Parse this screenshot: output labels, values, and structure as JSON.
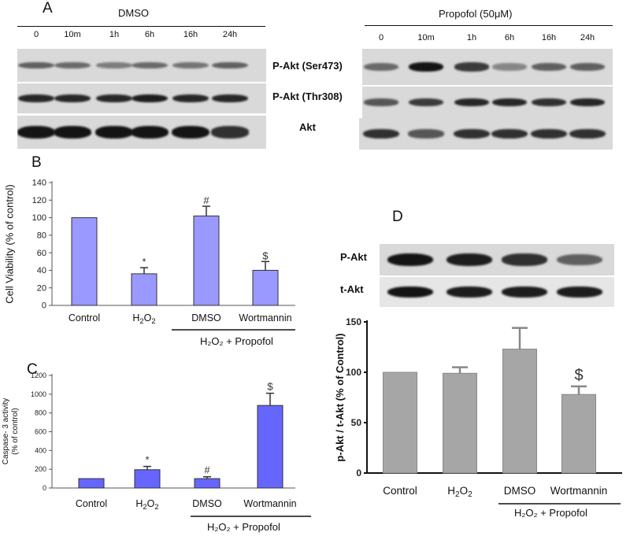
{
  "panelA": {
    "letter": "A",
    "left_group": "DMSO",
    "right_group": "Propofol (50μM)",
    "timepoints": [
      "0",
      "10m",
      "1h",
      "6h",
      "16h",
      "24h"
    ],
    "row_labels": [
      "P-Akt (Ser473)",
      "P-Akt (Thr308)",
      "Akt"
    ],
    "left_intensity": [
      [
        0.55,
        0.5,
        0.4,
        0.5,
        0.45,
        0.55
      ],
      [
        0.85,
        0.85,
        0.85,
        0.9,
        0.85,
        0.85
      ],
      [
        0.95,
        0.95,
        0.95,
        0.95,
        0.95,
        0.8
      ]
    ],
    "right_intensity": [
      [
        0.5,
        0.95,
        0.75,
        0.35,
        0.55,
        0.55
      ],
      [
        0.6,
        0.75,
        0.85,
        0.85,
        0.8,
        0.85
      ],
      [
        0.8,
        0.6,
        0.8,
        0.8,
        0.8,
        0.8
      ]
    ]
  },
  "panelB": {
    "letter": "B",
    "group_label": "H₂O₂ + Propofol",
    "bar_color": "#9999ff",
    "chart_data": {
      "type": "bar",
      "categories": [
        "Control",
        "H₂O₂",
        "DMSO",
        "Wortmannin"
      ],
      "values": [
        100,
        36,
        102,
        40
      ],
      "errors": [
        0,
        7,
        11,
        10
      ],
      "annotations": [
        "",
        "*",
        "#",
        "$"
      ],
      "ylabel": "Cell Viability (% of control)",
      "yticks": [
        0,
        20,
        40,
        60,
        80,
        100,
        120,
        140
      ],
      "ylim": [
        0,
        140
      ]
    }
  },
  "panelC": {
    "letter": "C",
    "group_label": "H₂O₂ + Propofol",
    "bar_color": "#6666ff",
    "chart_data": {
      "type": "bar",
      "categories": [
        "Control",
        "H₂O₂",
        "DMSO",
        "Wortmannin"
      ],
      "values": [
        100,
        195,
        100,
        880
      ],
      "errors": [
        0,
        35,
        20,
        130
      ],
      "annotations": [
        "",
        "*",
        "#",
        "$"
      ],
      "ylabel": "Caspase- 3 activity (% of control)",
      "ylabel_lines": [
        "Caspase- 3 activity",
        "(% of control)"
      ],
      "yticks": [
        0,
        200,
        400,
        600,
        800,
        1000,
        1200
      ],
      "ylim": [
        0,
        1200
      ]
    }
  },
  "panelD": {
    "letter": "D",
    "blot_labels": [
      "P-Akt",
      "t-Akt"
    ],
    "blot_intensity": [
      [
        0.95,
        0.9,
        0.8,
        0.55
      ],
      [
        0.95,
        0.9,
        0.9,
        0.9
      ]
    ],
    "group_label": "H₂O₂ + Propofol",
    "bar_color": "#a6a6a6",
    "chart_data": {
      "type": "bar",
      "categories": [
        "Control",
        "H₂O₂",
        "DMSO",
        "Wortmannin"
      ],
      "values": [
        100,
        99,
        123,
        78
      ],
      "errors": [
        0,
        6,
        21,
        8
      ],
      "annotations": [
        "",
        "",
        "",
        "$"
      ],
      "ylabel": "p-Akt / t-Akt (% of Control)",
      "yticks": [
        0,
        50,
        100,
        150
      ],
      "ylim": [
        0,
        150
      ]
    }
  }
}
